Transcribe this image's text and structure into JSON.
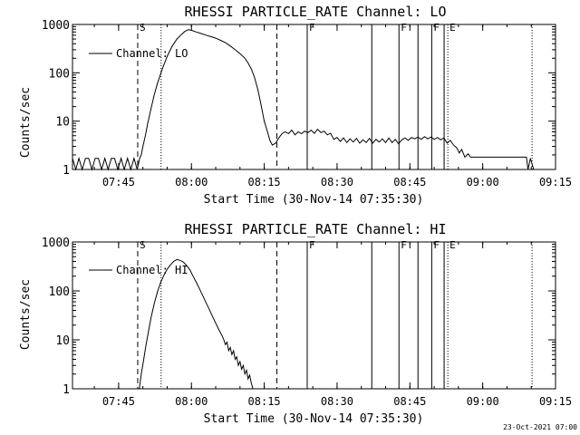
{
  "footer": {
    "timestamp": "23-Oct-2021 07:00"
  },
  "chart_data": [
    {
      "type": "line",
      "title": "RHESSI PARTICLE_RATE Channel: LO",
      "xlabel": "Start Time (30-Nov-14 07:35:30)",
      "ylabel": "Counts/sec",
      "yscale": "log",
      "xlim": [
        "07:35:30",
        "09:15:00"
      ],
      "ylim": [
        1,
        1000
      ],
      "xticks": [
        "07:45",
        "08:00",
        "08:15",
        "08:30",
        "08:45",
        "09:00",
        "09:15"
      ],
      "yticks": [
        "1",
        "10",
        "100",
        "1000"
      ],
      "legend": {
        "position": "top-left",
        "entries": [
          "Channel: LO"
        ]
      },
      "markers": [
        {
          "time": "07:48:56",
          "style": "dashed",
          "label": "S"
        },
        {
          "time": "07:53:45",
          "style": "dotted",
          "label": ""
        },
        {
          "time": "08:17:36",
          "style": "dashed",
          "label": ""
        },
        {
          "time": "08:23:51",
          "style": "solid",
          "label": "F"
        },
        {
          "time": "08:37:09",
          "style": "solid",
          "label": ""
        },
        {
          "time": "08:42:45",
          "style": "solid",
          "label": "F"
        },
        {
          "time": "08:46:40",
          "style": "solid",
          "label": ""
        },
        {
          "time": "08:49:30",
          "style": "solid",
          "label": "F"
        },
        {
          "time": "08:52:03",
          "style": "solid",
          "label": ""
        },
        {
          "time": "08:52:49",
          "style": "dotted",
          "label": "E"
        },
        {
          "time": "09:10:10",
          "style": "dotted",
          "label": ""
        }
      ],
      "series": [
        {
          "name": "Channel: LO",
          "points": [
            [
              "07:35:30",
              1.7
            ],
            [
              "07:36:10",
              1
            ],
            [
              "07:36:50",
              1.7
            ],
            [
              "07:37:30",
              1
            ],
            [
              "07:38:10",
              1.7
            ],
            [
              "07:38:50",
              1.7
            ],
            [
              "07:39:30",
              1
            ],
            [
              "07:40:10",
              1.7
            ],
            [
              "07:40:50",
              1.7
            ],
            [
              "07:41:30",
              1
            ],
            [
              "07:42:10",
              1.7
            ],
            [
              "07:42:50",
              1
            ],
            [
              "07:43:30",
              1.7
            ],
            [
              "07:44:10",
              1.7
            ],
            [
              "07:44:50",
              1
            ],
            [
              "07:45:30",
              1.7
            ],
            [
              "07:46:10",
              1
            ],
            [
              "07:46:50",
              1.7
            ],
            [
              "07:47:30",
              1
            ],
            [
              "07:48:10",
              1.7
            ],
            [
              "07:48:50",
              1
            ],
            [
              "07:49:20",
              1.7
            ],
            [
              "07:49:40",
              2
            ],
            [
              "07:50:00",
              3
            ],
            [
              "07:50:30",
              5
            ],
            [
              "07:51:00",
              9
            ],
            [
              "07:51:40",
              18
            ],
            [
              "07:52:20",
              35
            ],
            [
              "07:53:00",
              60
            ],
            [
              "07:54:00",
              120
            ],
            [
              "07:55:00",
              220
            ],
            [
              "07:56:00",
              350
            ],
            [
              "07:57:00",
              500
            ],
            [
              "07:58:00",
              630
            ],
            [
              "07:58:40",
              720
            ],
            [
              "07:59:20",
              780
            ],
            [
              "08:00:00",
              760
            ],
            [
              "08:01:00",
              700
            ],
            [
              "08:02:00",
              650
            ],
            [
              "08:03:00",
              600
            ],
            [
              "08:04:00",
              560
            ],
            [
              "08:05:00",
              520
            ],
            [
              "08:06:00",
              470
            ],
            [
              "08:07:00",
              420
            ],
            [
              "08:08:00",
              360
            ],
            [
              "08:09:00",
              300
            ],
            [
              "08:10:00",
              250
            ],
            [
              "08:11:00",
              200
            ],
            [
              "08:11:40",
              160
            ],
            [
              "08:12:20",
              120
            ],
            [
              "08:13:00",
              80
            ],
            [
              "08:13:40",
              45
            ],
            [
              "08:14:20",
              22
            ],
            [
              "08:15:00",
              10
            ],
            [
              "08:15:40",
              6
            ],
            [
              "08:16:10",
              4
            ],
            [
              "08:16:40",
              3.2
            ],
            [
              "08:17:20",
              3.5
            ],
            [
              "08:18:00",
              4.5
            ],
            [
              "08:18:40",
              5.5
            ],
            [
              "08:19:20",
              6
            ],
            [
              "08:20:00",
              5.5
            ],
            [
              "08:20:40",
              6.5
            ],
            [
              "08:21:20",
              5.2
            ],
            [
              "08:22:00",
              6
            ],
            [
              "08:22:40",
              5.5
            ],
            [
              "08:23:20",
              6.2
            ],
            [
              "08:24:00",
              5.8
            ],
            [
              "08:24:40",
              6.5
            ],
            [
              "08:25:20",
              5.6
            ],
            [
              "08:26:00",
              6.8
            ],
            [
              "08:26:40",
              5.8
            ],
            [
              "08:27:20",
              6.2
            ],
            [
              "08:28:00",
              5.2
            ],
            [
              "08:28:40",
              5.6
            ],
            [
              "08:29:20",
              4.2
            ],
            [
              "08:30:00",
              4.6
            ],
            [
              "08:30:40",
              3.8
            ],
            [
              "08:31:20",
              4.5
            ],
            [
              "08:32:00",
              3.6
            ],
            [
              "08:32:40",
              4.3
            ],
            [
              "08:33:20",
              3.7
            ],
            [
              "08:34:00",
              4.4
            ],
            [
              "08:34:40",
              3.5
            ],
            [
              "08:35:20",
              4.1
            ],
            [
              "08:36:00",
              3.6
            ],
            [
              "08:36:40",
              4.4
            ],
            [
              "08:37:20",
              3.5
            ],
            [
              "08:38:00",
              4.2
            ],
            [
              "08:38:40",
              3.7
            ],
            [
              "08:39:20",
              4.3
            ],
            [
              "08:40:00",
              3.6
            ],
            [
              "08:40:40",
              4.5
            ],
            [
              "08:41:20",
              3.6
            ],
            [
              "08:42:00",
              4.2
            ],
            [
              "08:42:40",
              3.4
            ],
            [
              "08:43:20",
              4.1
            ],
            [
              "08:44:00",
              4.5
            ],
            [
              "08:44:40",
              4
            ],
            [
              "08:45:20",
              4.6
            ],
            [
              "08:46:00",
              4.3
            ],
            [
              "08:46:40",
              4.7
            ],
            [
              "08:47:20",
              4.2
            ],
            [
              "08:48:00",
              4.8
            ],
            [
              "08:48:40",
              4.3
            ],
            [
              "08:49:20",
              4.7
            ],
            [
              "08:50:00",
              4.2
            ],
            [
              "08:50:40",
              4.6
            ],
            [
              "08:51:20",
              4.1
            ],
            [
              "08:52:00",
              4.5
            ],
            [
              "08:52:40",
              3.5
            ],
            [
              "08:53:20",
              4
            ],
            [
              "08:54:00",
              3.2
            ],
            [
              "08:54:40",
              2.8
            ],
            [
              "08:55:10",
              2.2
            ],
            [
              "08:55:40",
              2.6
            ],
            [
              "08:56:20",
              1.8
            ],
            [
              "08:57:00",
              2.1
            ],
            [
              "08:57:30",
              1.8
            ],
            [
              "08:58:00",
              1.8
            ],
            [
              "09:00:00",
              1.8
            ],
            [
              "09:02:00",
              1.8
            ],
            [
              "09:04:00",
              1.8
            ],
            [
              "09:06:00",
              1.8
            ],
            [
              "09:08:00",
              1.8
            ],
            [
              "09:09:00",
              1.8
            ],
            [
              "09:09:20",
              1
            ],
            [
              "09:09:50",
              1.7
            ],
            [
              "09:10:30",
              1
            ]
          ]
        }
      ]
    },
    {
      "type": "line",
      "title": "RHESSI PARTICLE_RATE Channel: HI",
      "xlabel": "Start Time (30-Nov-14 07:35:30)",
      "ylabel": "Counts/sec",
      "yscale": "log",
      "xlim": [
        "07:35:30",
        "09:15:00"
      ],
      "ylim": [
        1,
        1000
      ],
      "xticks": [
        "07:45",
        "08:00",
        "08:15",
        "08:30",
        "08:45",
        "09:00",
        "09:15"
      ],
      "yticks": [
        "1",
        "10",
        "100",
        "1000"
      ],
      "legend": {
        "position": "top-left",
        "entries": [
          "Channel: HI"
        ]
      },
      "markers": [
        {
          "time": "07:48:56",
          "style": "dashed",
          "label": "S"
        },
        {
          "time": "07:53:45",
          "style": "dotted",
          "label": ""
        },
        {
          "time": "08:17:36",
          "style": "dashed",
          "label": ""
        },
        {
          "time": "08:23:51",
          "style": "solid",
          "label": "F"
        },
        {
          "time": "08:37:09",
          "style": "solid",
          "label": ""
        },
        {
          "time": "08:42:45",
          "style": "solid",
          "label": "F"
        },
        {
          "time": "08:46:40",
          "style": "solid",
          "label": ""
        },
        {
          "time": "08:49:30",
          "style": "solid",
          "label": "F"
        },
        {
          "time": "08:52:03",
          "style": "solid",
          "label": ""
        },
        {
          "time": "08:52:49",
          "style": "dotted",
          "label": "E"
        },
        {
          "time": "09:10:10",
          "style": "dotted",
          "label": ""
        }
      ],
      "series": [
        {
          "name": "Channel: HI",
          "points": [
            [
              "07:49:15",
              1
            ],
            [
              "07:49:40",
              2
            ],
            [
              "07:50:10",
              4
            ],
            [
              "07:50:40",
              8
            ],
            [
              "07:51:10",
              15
            ],
            [
              "07:51:40",
              28
            ],
            [
              "07:52:20",
              55
            ],
            [
              "07:53:00",
              95
            ],
            [
              "07:53:40",
              150
            ],
            [
              "07:54:20",
              210
            ],
            [
              "07:55:00",
              280
            ],
            [
              "07:55:40",
              340
            ],
            [
              "07:56:20",
              400
            ],
            [
              "07:57:00",
              440
            ],
            [
              "07:57:40",
              420
            ],
            [
              "07:58:20",
              390
            ],
            [
              "07:59:00",
              330
            ],
            [
              "07:59:40",
              270
            ],
            [
              "08:00:20",
              200
            ],
            [
              "08:01:00",
              150
            ],
            [
              "08:01:40",
              110
            ],
            [
              "08:02:20",
              80
            ],
            [
              "08:03:00",
              58
            ],
            [
              "08:03:40",
              42
            ],
            [
              "08:04:20",
              30
            ],
            [
              "08:05:00",
              22
            ],
            [
              "08:05:40",
              16
            ],
            [
              "08:06:20",
              12
            ],
            [
              "08:06:40",
              10
            ],
            [
              "08:07:00",
              8
            ],
            [
              "08:07:20",
              9
            ],
            [
              "08:07:40",
              6
            ],
            [
              "08:08:00",
              7
            ],
            [
              "08:08:20",
              5
            ],
            [
              "08:08:40",
              6
            ],
            [
              "08:09:00",
              4
            ],
            [
              "08:09:20",
              4.5
            ],
            [
              "08:09:40",
              3
            ],
            [
              "08:10:00",
              3.6
            ],
            [
              "08:10:20",
              2.5
            ],
            [
              "08:10:40",
              3
            ],
            [
              "08:11:00",
              2
            ],
            [
              "08:11:20",
              2.4
            ],
            [
              "08:11:40",
              1.6
            ],
            [
              "08:12:00",
              1.9
            ],
            [
              "08:12:20",
              1.3
            ],
            [
              "08:12:40",
              1
            ]
          ]
        }
      ]
    }
  ]
}
